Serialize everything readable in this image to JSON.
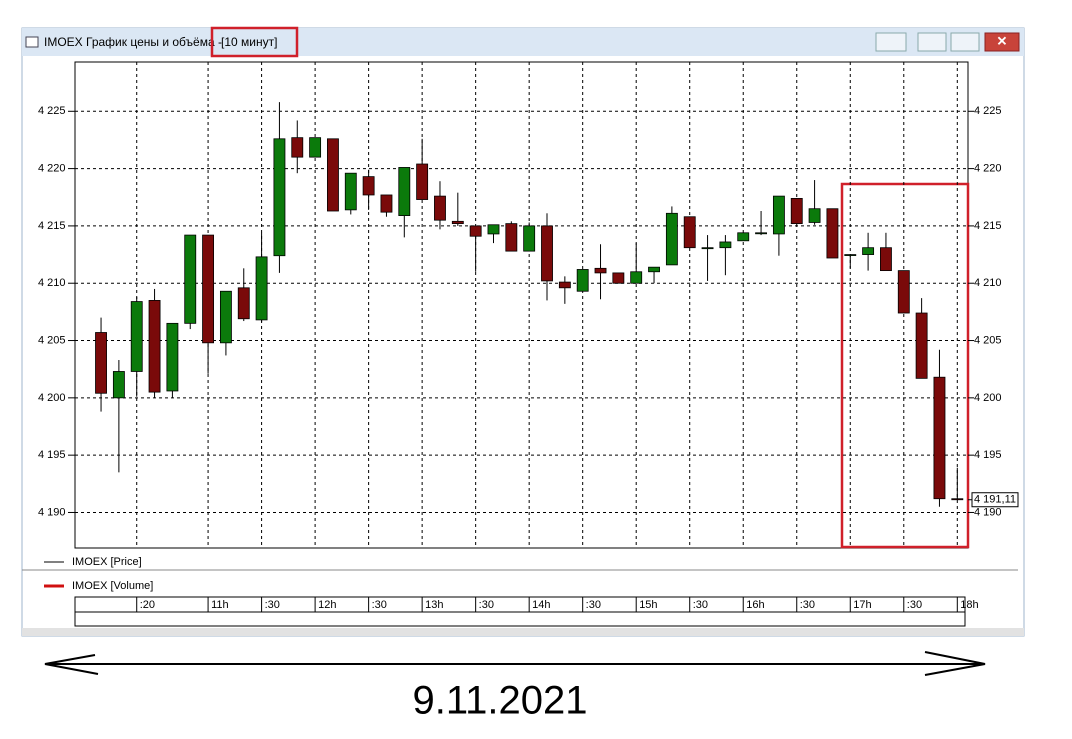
{
  "chart_data": {
    "type": "candlestick",
    "title": "IMOEX График цены и объёма - ",
    "interval": "[10 минут]",
    "series": [
      {
        "name": "IMOEX [Price]",
        "open": [
          4205.7,
          4200.0,
          4202.3,
          4208.5,
          4200.6,
          4206.5,
          4214.2,
          4204.8,
          4209.6,
          4206.8,
          4212.4,
          4222.7,
          4221.0,
          4222.6,
          4216.4,
          4219.3,
          4217.7,
          4215.9,
          4220.4,
          4217.6,
          4215.4,
          4215.0,
          4214.3,
          4215.2,
          4212.8,
          4215.0,
          4210.1,
          4209.3,
          4211.3,
          4210.9,
          4210.0,
          4211.0,
          4211.6,
          4215.8,
          4213.1,
          4213.1,
          4213.7,
          4214.4,
          4214.3,
          4217.4,
          4215.3,
          4216.5,
          4212.5,
          4212.5,
          4213.1,
          4211.1,
          4207.4,
          4201.8,
          4191.2
        ],
        "high": [
          4207.0,
          4203.3,
          4208.8,
          4209.5,
          4206.5,
          4214.2,
          4214.2,
          4209.3,
          4211.3,
          4214.4,
          4225.8,
          4224.2,
          4222.7,
          4222.6,
          4219.6,
          4219.9,
          4217.7,
          4220.1,
          4222.6,
          4218.9,
          4217.9,
          4215.0,
          4215.1,
          4215.4,
          4215.3,
          4216.1,
          4210.6,
          4211.2,
          4213.4,
          4210.9,
          4213.5,
          4211.4,
          4216.7,
          4215.8,
          4214.2,
          4214.2,
          4214.4,
          4216.3,
          4217.6,
          4217.4,
          4219.0,
          4216.5,
          4212.5,
          4214.4,
          4214.4,
          4211.1,
          4208.7,
          4204.2,
          4193.9
        ],
        "low": [
          4198.8,
          4193.5,
          4200.1,
          4200.0,
          4200.0,
          4206.0,
          4202.1,
          4203.7,
          4206.7,
          4206.6,
          4210.9,
          4219.6,
          4221.0,
          4216.3,
          4216.0,
          4216.4,
          4215.8,
          4214.0,
          4217.3,
          4214.7,
          4215.0,
          4211.0,
          4213.5,
          4212.8,
          4212.8,
          4208.5,
          4208.2,
          4209.3,
          4208.6,
          4210.0,
          4210.0,
          4210.0,
          4211.6,
          4213.1,
          4210.2,
          4210.7,
          4213.7,
          4214.2,
          4212.4,
          4215.2,
          4215.1,
          4212.2,
          4211.3,
          4211.1,
          4211.1,
          4207.4,
          4201.7,
          4190.5,
          4191.1
        ],
        "close": [
          4200.4,
          4202.3,
          4208.4,
          4200.5,
          4206.5,
          4214.2,
          4204.8,
          4209.3,
          4206.9,
          4212.3,
          4222.6,
          4221.0,
          4222.7,
          4216.3,
          4219.6,
          4217.7,
          4216.2,
          4220.1,
          4217.3,
          4215.5,
          4215.2,
          4214.1,
          4215.1,
          4212.8,
          4215.0,
          4210.2,
          4209.6,
          4211.2,
          4210.9,
          4210.0,
          4211.0,
          4211.4,
          4216.1,
          4213.1,
          4213.1,
          4213.6,
          4214.4,
          4214.4,
          4217.6,
          4215.2,
          4216.5,
          4212.2,
          4212.5,
          4213.1,
          4211.1,
          4207.4,
          4201.7,
          4191.2,
          4191.11
        ]
      }
    ],
    "up_color": "#0b7a0b",
    "down_color": "#7a0a0a",
    "legend": [
      {
        "name": "IMOEX [Price]",
        "color": "#000000"
      },
      {
        "name": "IMOEX [Volume]",
        "color": "#d01010"
      }
    ],
    "ylim": [
      4186.9,
      4229.3
    ],
    "yticks": [
      {
        "value": 4190,
        "label": "4 190"
      },
      {
        "value": 4195,
        "label": "4 195"
      },
      {
        "value": 4200,
        "label": "4 200"
      },
      {
        "value": 4205,
        "label": "4 205"
      },
      {
        "value": 4210,
        "label": "4 210"
      },
      {
        "value": 4215,
        "label": "4 215"
      },
      {
        "value": 4220,
        "label": "4 220"
      },
      {
        "value": 4225,
        "label": "4 225"
      }
    ],
    "last_price": {
      "value": 4191.11,
      "label": "4 191,11"
    },
    "xlim": [
      -1.46,
      48.6
    ],
    "xticks": [
      {
        "value": 2,
        "label": ":20"
      },
      {
        "value": 6,
        "label": "11h"
      },
      {
        "value": 9,
        "label": ":30"
      },
      {
        "value": 12,
        "label": "12h"
      },
      {
        "value": 15,
        "label": ":30"
      },
      {
        "value": 18,
        "label": "13h"
      },
      {
        "value": 21,
        "label": ":30"
      },
      {
        "value": 24,
        "label": "14h"
      },
      {
        "value": 27,
        "label": ":30"
      },
      {
        "value": 30,
        "label": "15h"
      },
      {
        "value": 33,
        "label": ":30"
      },
      {
        "value": 36,
        "label": "16h"
      },
      {
        "value": 39,
        "label": ":30"
      },
      {
        "value": 42,
        "label": "17h"
      },
      {
        "value": 45,
        "label": ":30"
      },
      {
        "value": 48,
        "label": "18h"
      }
    ],
    "grid": true
  },
  "caption": "9.11.2021"
}
